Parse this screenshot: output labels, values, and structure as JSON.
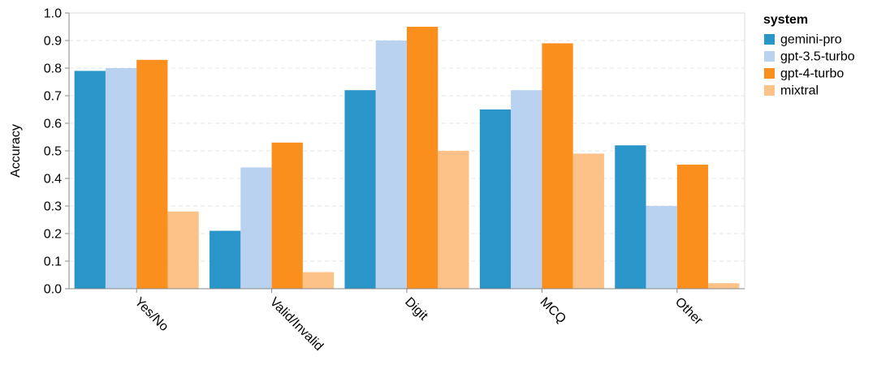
{
  "chart_data": {
    "type": "bar",
    "ylabel": "Accuracy",
    "ylim": [
      0,
      1.0
    ],
    "y_ticks": [
      "0.0",
      "0.1",
      "0.2",
      "0.3",
      "0.4",
      "0.5",
      "0.6",
      "0.7",
      "0.8",
      "0.9",
      "1.0"
    ],
    "grid": true,
    "legend_title": "system",
    "legend_position": "right",
    "categories": [
      "Yes/No",
      "Valid/Invalid",
      "Digit",
      "MCQ",
      "Other"
    ],
    "series": [
      {
        "name": "gemini-pro",
        "color": "#2a95c8",
        "values": [
          0.79,
          0.21,
          0.72,
          0.65,
          0.52
        ]
      },
      {
        "name": "gpt-3.5-turbo",
        "color": "#b9d2f0",
        "values": [
          0.8,
          0.44,
          0.9,
          0.72,
          0.3
        ]
      },
      {
        "name": "gpt-4-turbo",
        "color": "#fb8f1d",
        "values": [
          0.83,
          0.53,
          0.95,
          0.89,
          0.45
        ]
      },
      {
        "name": "mixtral",
        "color": "#fdc287",
        "values": [
          0.28,
          0.06,
          0.5,
          0.49,
          0.02
        ]
      }
    ]
  }
}
